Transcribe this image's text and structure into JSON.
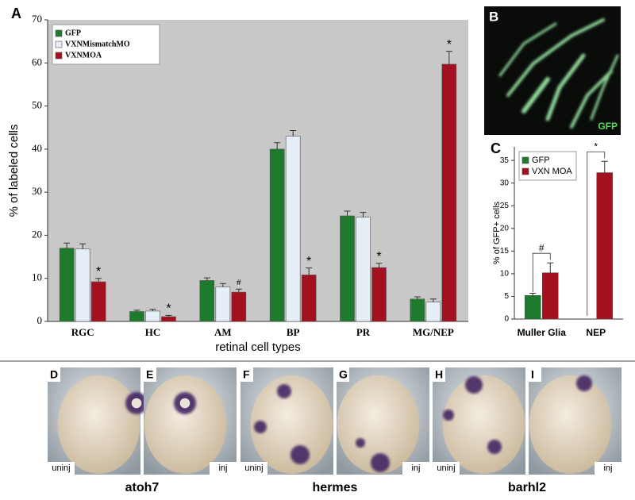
{
  "chart_data": [
    {
      "type": "bar",
      "panel": "A",
      "xlabel": "retinal cell types",
      "ylabel": "% of labeled cells",
      "categories": [
        "RGC",
        "HC",
        "AM",
        "BP",
        "PR",
        "MG/NEP"
      ],
      "series": [
        {
          "name": "GFP",
          "color": "#1e7b2e",
          "values": [
            17,
            2.3,
            9.5,
            40,
            24.5,
            5.2
          ],
          "errors": [
            1.2,
            0.3,
            0.6,
            1.5,
            1.1,
            0.5
          ]
        },
        {
          "name": "VXNMismatchMO",
          "color": "#e6eef8",
          "values": [
            16.8,
            2.4,
            8,
            43,
            24.2,
            4.5
          ],
          "errors": [
            1.2,
            0.4,
            0.8,
            1.3,
            1.1,
            0.7
          ]
        },
        {
          "name": "VXNMOA",
          "color": "#a3101f",
          "values": [
            9.2,
            1.1,
            6.8,
            10.8,
            12.5,
            59.7
          ],
          "errors": [
            0.8,
            0.3,
            0.7,
            1.6,
            1.0,
            3.0
          ],
          "annotations": [
            "*",
            "*",
            "#",
            "*",
            "*",
            "*"
          ]
        }
      ],
      "ylim": [
        0,
        70
      ],
      "yticks": [
        0,
        10,
        20,
        30,
        40,
        50,
        60,
        70
      ],
      "background": "#c8c8c8",
      "legend": "top-left"
    },
    {
      "type": "bar",
      "panel": "C",
      "ylabel": "% of GFP+ cells",
      "categories": [
        "Muller Glia",
        "NEP"
      ],
      "series": [
        {
          "name": "GFP",
          "color": "#1e7b2e",
          "values": [
            5.2,
            0
          ],
          "errors": [
            0.5,
            0
          ]
        },
        {
          "name": "VXN MOA",
          "color": "#a3101f",
          "values": [
            10.2,
            32.3
          ],
          "errors": [
            2.2,
            2.5
          ]
        }
      ],
      "brackets": [
        "#",
        "*"
      ],
      "ylim": [
        0,
        38
      ],
      "yticks": [
        0,
        5,
        10,
        15,
        20,
        25,
        30,
        35
      ],
      "background": "#ffffff",
      "legend": "top-left"
    }
  ],
  "panel_b": {
    "label": "B",
    "caption": "GFP"
  },
  "photos": [
    {
      "label": "D",
      "condition": "uninj"
    },
    {
      "label": "E",
      "condition": "inj"
    },
    {
      "label": "F",
      "condition": "uninj"
    },
    {
      "label": "G",
      "condition": "inj"
    },
    {
      "label": "H",
      "condition": "uninj"
    },
    {
      "label": "I",
      "condition": "inj"
    }
  ],
  "genes": [
    "atoh7",
    "hermes",
    "barhl2"
  ]
}
